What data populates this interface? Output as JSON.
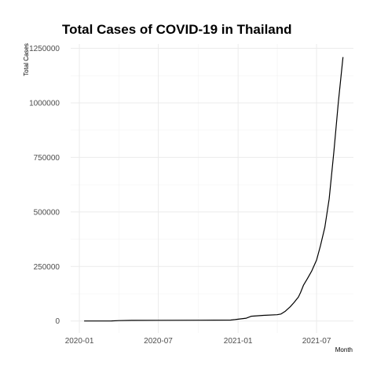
{
  "chart_data": {
    "type": "line",
    "title": "Total Cases of COVID-19 in Thailand",
    "xlabel": "Month",
    "ylabel": "Total Cases",
    "x_tick_labels": [
      "2020-01",
      "2020-07",
      "2021-01",
      "2021-07"
    ],
    "x_ticks": [
      "2020-01-01",
      "2020-07-01",
      "2021-01-01",
      "2021-07-01"
    ],
    "y_tick_labels": [
      "0",
      "250000",
      "500000",
      "750000",
      "1000000",
      "1250000"
    ],
    "y_ticks": [
      0,
      250000,
      500000,
      750000,
      1000000,
      1250000
    ],
    "xlim": [
      "2019-12-12",
      "2021-09-24"
    ],
    "ylim": [
      -55000,
      1270000
    ],
    "grid": true,
    "legend": "none",
    "line_color": "#000000",
    "series": [
      {
        "x": [
          "2020-01-12",
          "2020-02-15",
          "2020-03-15",
          "2020-04-01",
          "2020-05-01",
          "2020-07-01",
          "2020-10-01",
          "2020-12-15",
          "2020-12-25",
          "2021-01-05",
          "2021-01-20",
          "2021-02-01",
          "2021-03-01",
          "2021-04-01",
          "2021-04-10",
          "2021-04-20",
          "2021-05-01",
          "2021-05-10",
          "2021-05-20",
          "2021-05-25",
          "2021-06-01",
          "2021-06-10",
          "2021-06-20",
          "2021-07-01",
          "2021-07-10",
          "2021-07-20",
          "2021-07-30",
          "2021-08-10",
          "2021-08-20",
          "2021-08-31"
        ],
        "y": [
          0,
          100,
          500,
          1800,
          3000,
          3200,
          3700,
          4500,
          6500,
          9500,
          13000,
          22000,
          26000,
          29000,
          32000,
          45000,
          65000,
          85000,
          110000,
          130000,
          165000,
          195000,
          230000,
          280000,
          345000,
          430000,
          560000,
          780000,
          1000000,
          1210000
        ]
      }
    ]
  }
}
